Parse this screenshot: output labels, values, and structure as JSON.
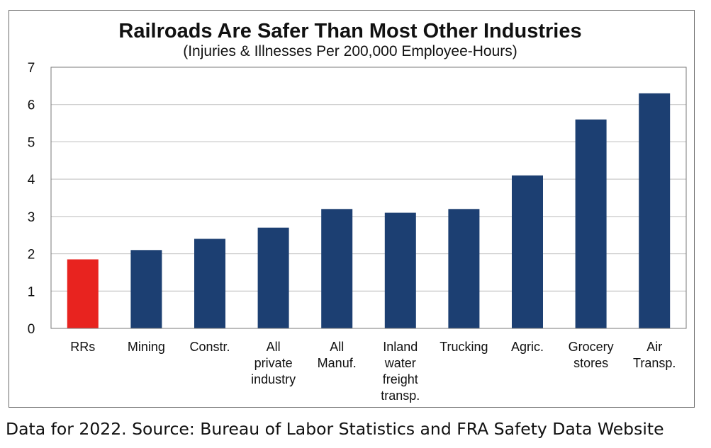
{
  "chart_data": {
    "type": "bar",
    "title": "Railroads Are Safer Than Most Other Industries",
    "subtitle": "(Injuries & Illnesses Per 200,000 Employee-Hours)",
    "categories": [
      [
        "RRs"
      ],
      [
        "Mining"
      ],
      [
        "Constr."
      ],
      [
        "All",
        "private",
        "industry"
      ],
      [
        "All",
        "Manuf."
      ],
      [
        "Inland",
        "water",
        "freight",
        "transp."
      ],
      [
        "Trucking"
      ],
      [
        "Agric."
      ],
      [
        "Grocery",
        "stores"
      ],
      [
        "Air",
        "Transp."
      ]
    ],
    "values": [
      1.85,
      2.1,
      2.4,
      2.7,
      3.2,
      3.1,
      3.2,
      4.1,
      5.6,
      6.3
    ],
    "colors": [
      "#e8231f",
      "#1c3f72",
      "#1c3f72",
      "#1c3f72",
      "#1c3f72",
      "#1c3f72",
      "#1c3f72",
      "#1c3f72",
      "#1c3f72",
      "#1c3f72"
    ],
    "ylim": [
      0,
      7
    ],
    "yticks": [
      0,
      1,
      2,
      3,
      4,
      5,
      6,
      7
    ],
    "grid": true,
    "gridColor": "#bdbdbd",
    "xlabel": "",
    "ylabel": ""
  },
  "footnote": "Data for 2022. Source: Bureau of Labor Statistics and FRA Safety Data Website"
}
